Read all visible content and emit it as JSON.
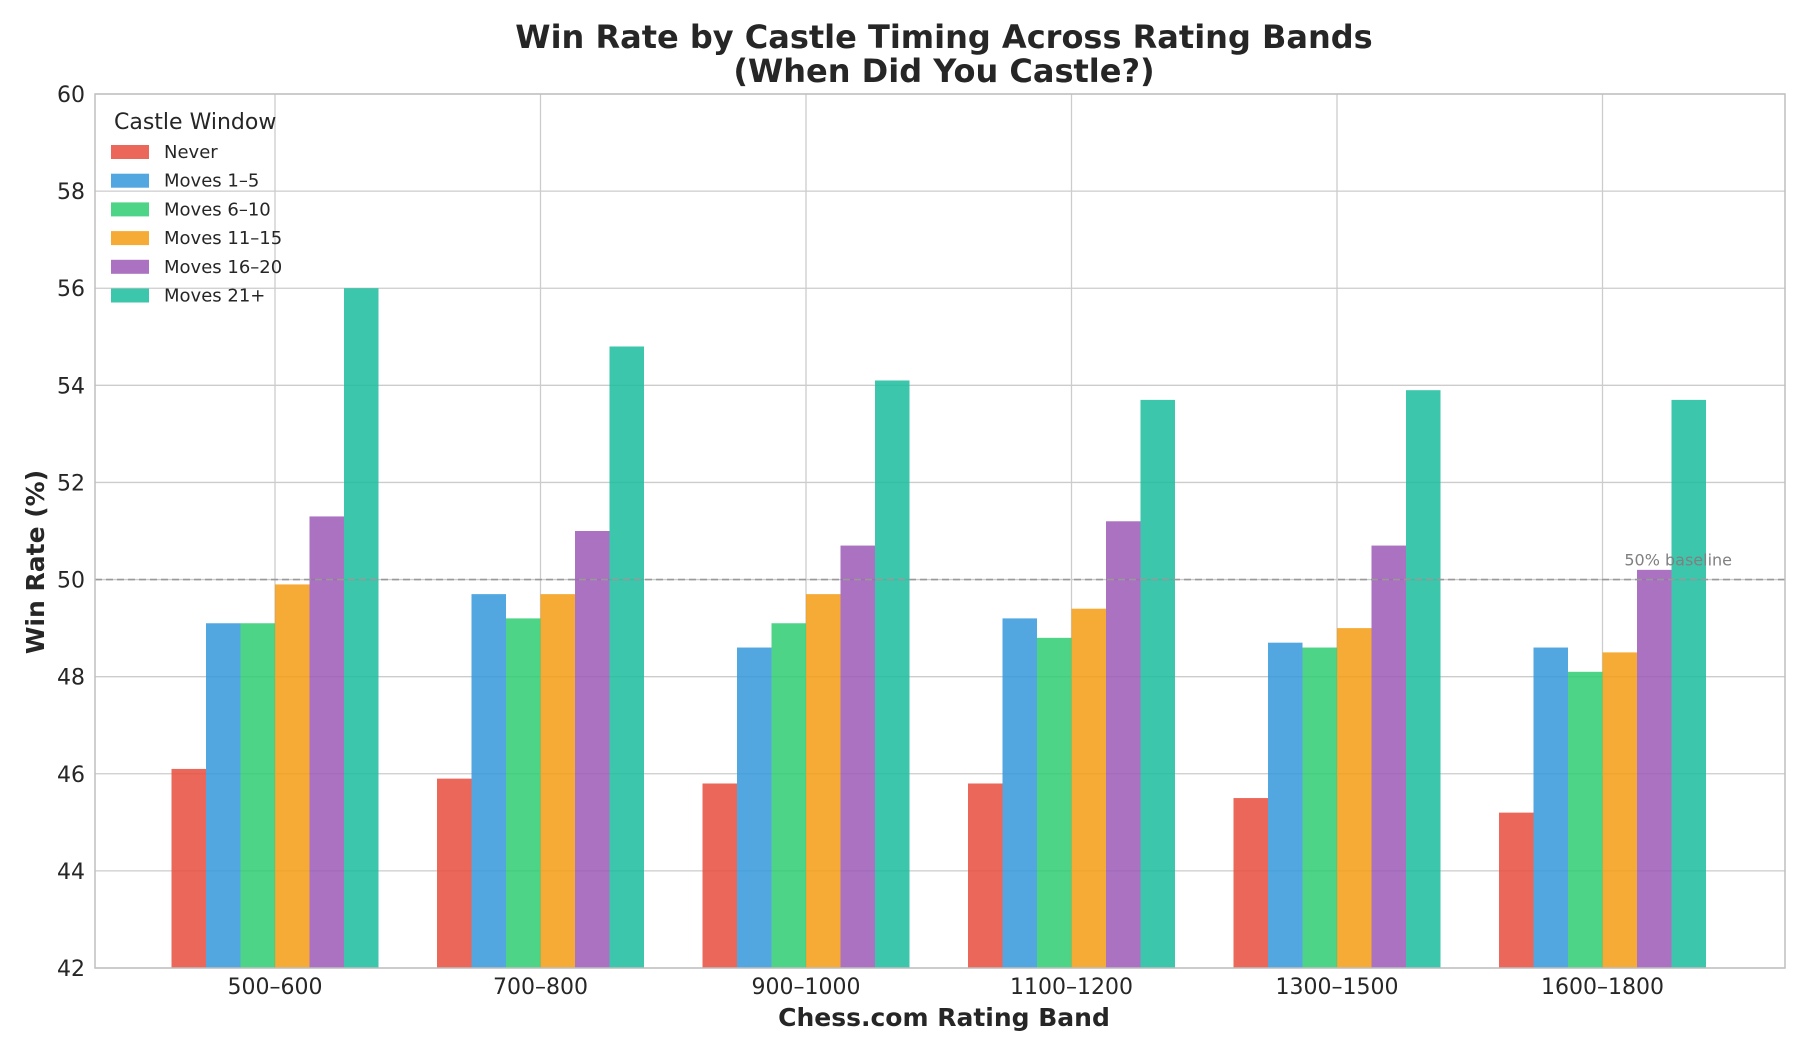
{
  "chart_data": {
    "type": "bar",
    "title_line1": "Win Rate by Castle Timing Across Rating Bands",
    "title_line2": "(When Did You Castle?)",
    "xlabel": "Chess.com Rating Band",
    "ylabel": "Win Rate (%)",
    "ylim": [
      42,
      60
    ],
    "yticks": [
      42,
      44,
      46,
      48,
      50,
      52,
      54,
      56,
      58,
      60
    ],
    "categories": [
      "500–600",
      "700–800",
      "900–1000",
      "1100–1200",
      "1300–1500",
      "1600–1800"
    ],
    "legend_title": "Castle Window",
    "legend_position": "top-left",
    "grid": true,
    "series": [
      {
        "name": "Never",
        "color": "#e74c3c",
        "values": [
          46.1,
          45.9,
          45.8,
          45.8,
          45.5,
          45.2
        ]
      },
      {
        "name": "Moves 1–5",
        "color": "#3498db",
        "values": [
          49.1,
          49.7,
          48.6,
          49.2,
          48.7,
          48.6
        ]
      },
      {
        "name": "Moves 6–10",
        "color": "#2ecc71",
        "values": [
          49.1,
          49.2,
          49.1,
          48.8,
          48.6,
          48.1
        ]
      },
      {
        "name": "Moves 11–15",
        "color": "#f39c12",
        "values": [
          49.9,
          49.7,
          49.7,
          49.4,
          49.0,
          48.5
        ]
      },
      {
        "name": "Moves 16–20",
        "color": "#9b59b6",
        "values": [
          51.3,
          51.0,
          50.7,
          51.2,
          50.7,
          50.2
        ]
      },
      {
        "name": "Moves 21+",
        "color": "#1abc9c",
        "values": [
          56.0,
          54.8,
          54.1,
          53.7,
          53.9,
          53.7
        ]
      }
    ],
    "baseline": {
      "value": 50,
      "label": "50% baseline",
      "color": "#999999"
    }
  }
}
